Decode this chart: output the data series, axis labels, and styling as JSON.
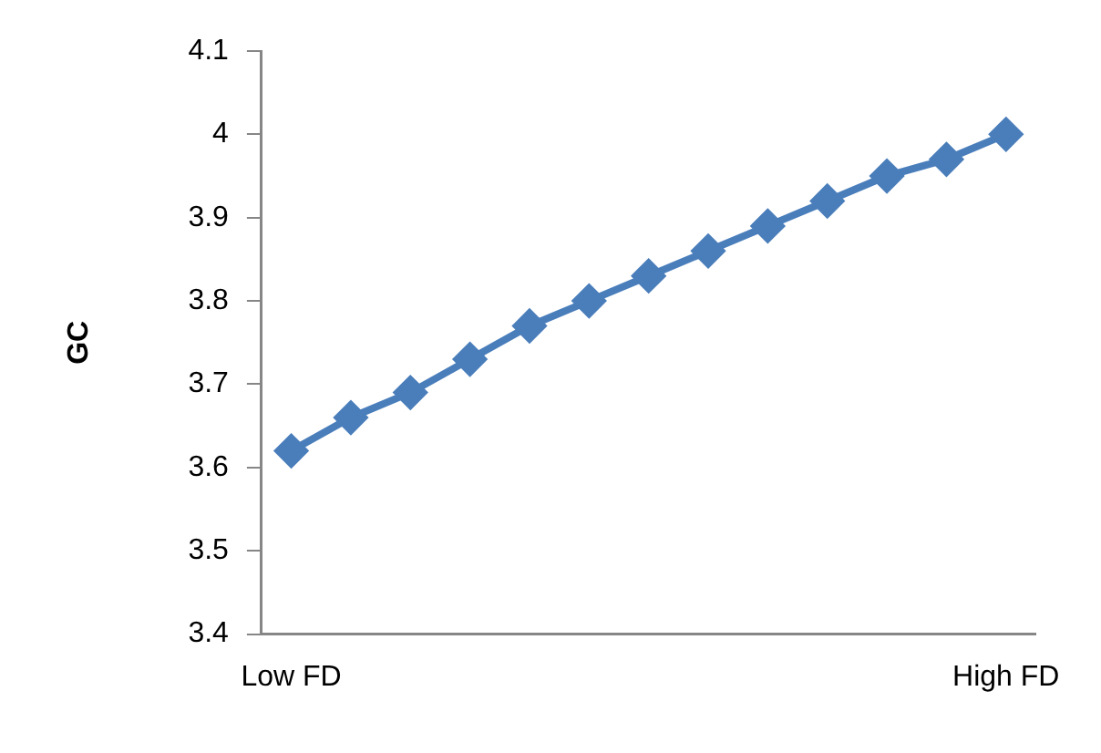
{
  "chart_data": {
    "type": "line",
    "ylabel": "GC",
    "categories": [
      "Low FD",
      null,
      null,
      null,
      null,
      null,
      null,
      null,
      null,
      null,
      null,
      null,
      "High FD"
    ],
    "series": [
      {
        "color": "#4a7ebb",
        "values": [
          3.62,
          3.66,
          3.69,
          3.73,
          3.77,
          3.8,
          3.83,
          3.86,
          3.89,
          3.92,
          3.95,
          3.97,
          4.0
        ]
      }
    ],
    "ylim": [
      3.4,
      4.1
    ],
    "yticks": [
      3.4,
      3.5,
      3.6,
      3.7,
      3.8,
      3.9,
      4,
      4.1
    ],
    "grid": false,
    "legend": false,
    "marker": "diamond",
    "line_style": "solid"
  }
}
